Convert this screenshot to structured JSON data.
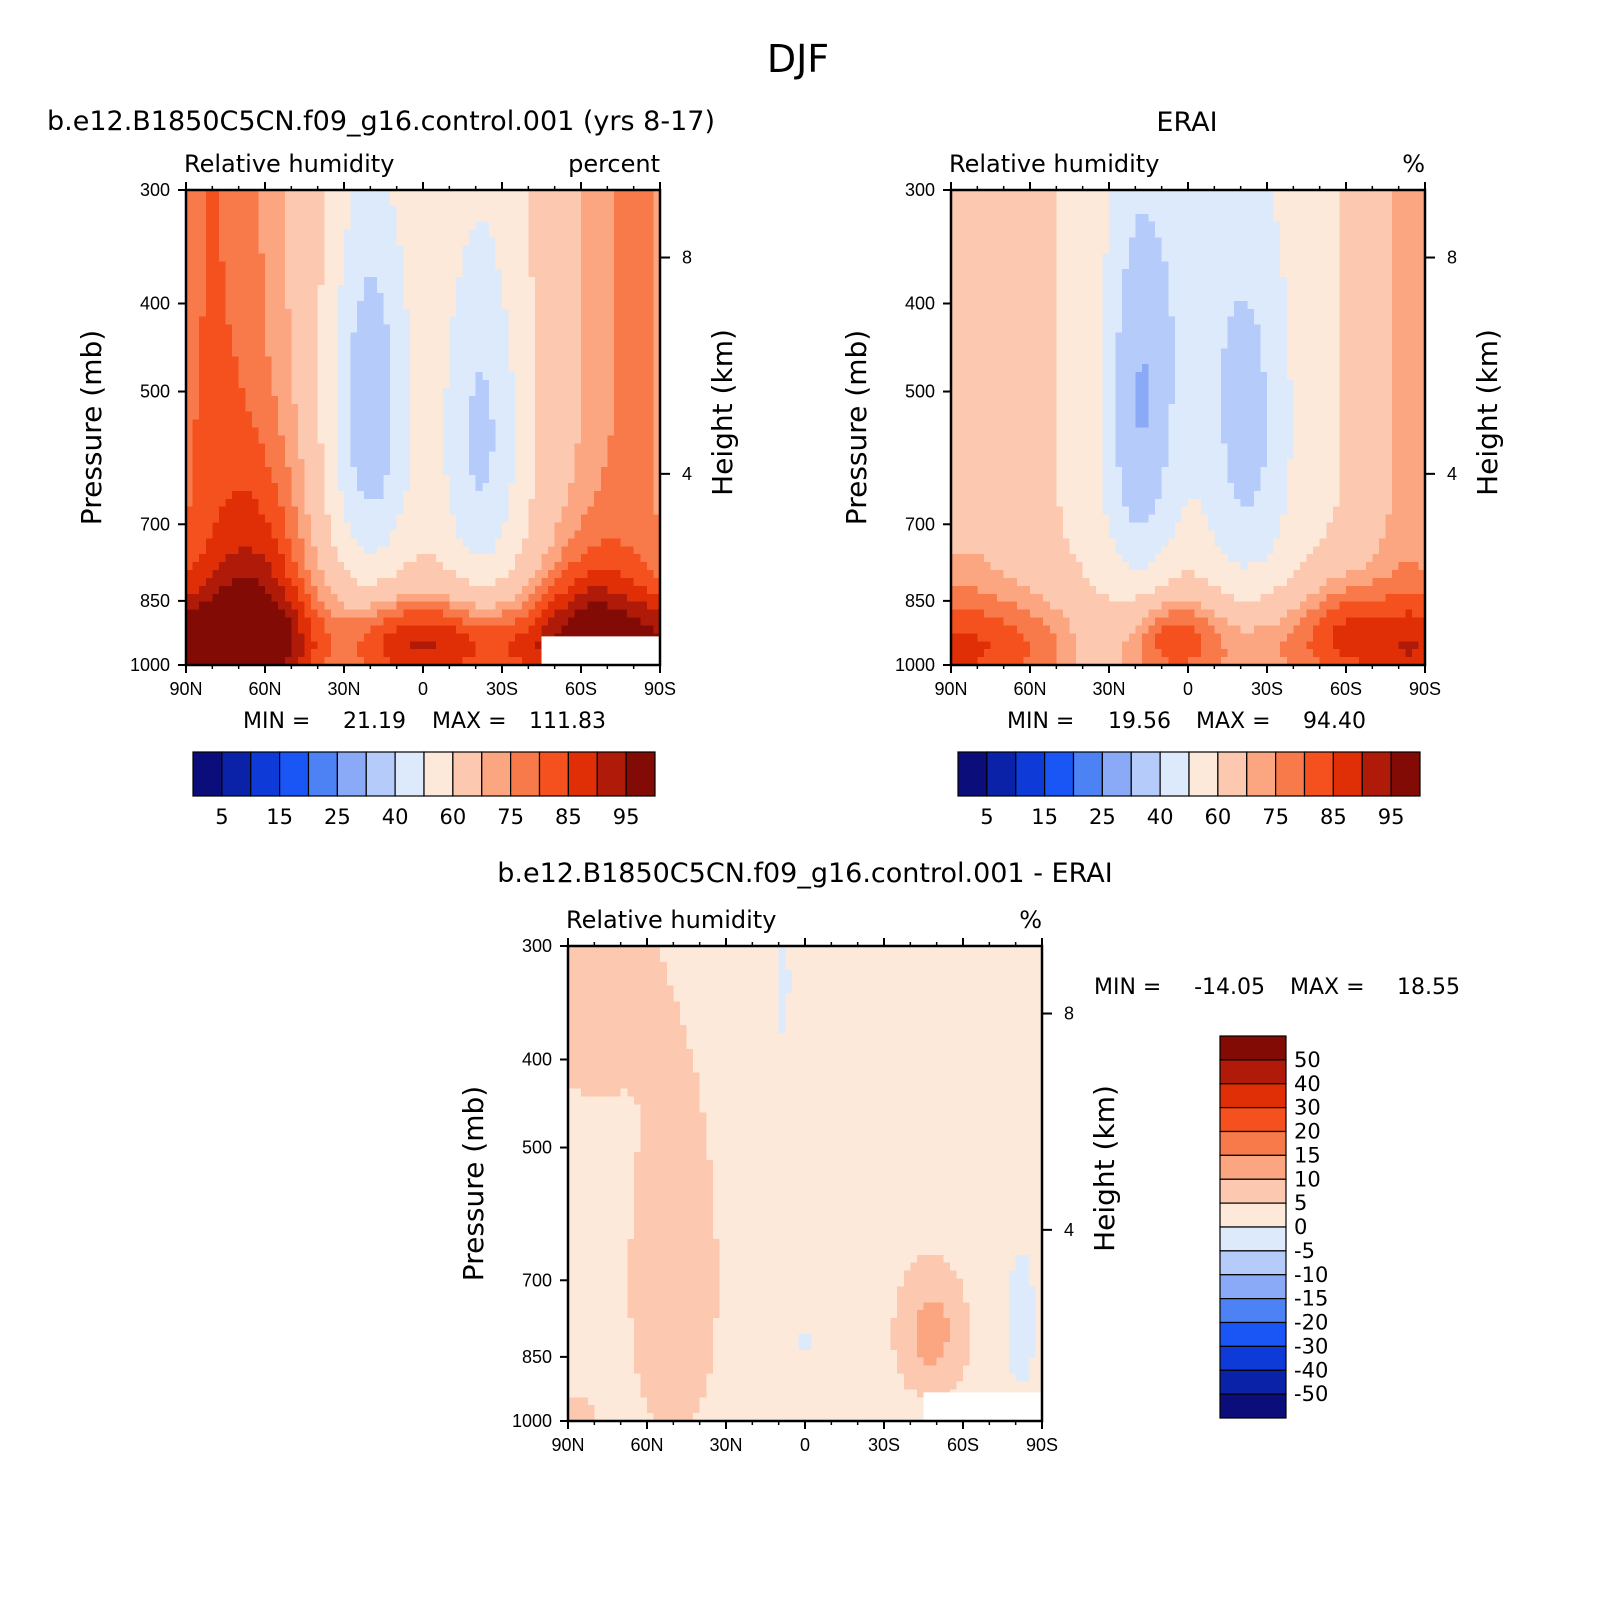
{
  "figure_title": "DJF",
  "chart_data": [
    {
      "type": "heatmap",
      "title": "b.e12.B1850C5CN.f09_g16.control.001 (yrs 8-17)",
      "left_label": "Relative humidity",
      "units": "percent",
      "ylabel": "Pressure (mb)",
      "y2label": "Height (km)",
      "x_ticks": [
        "90N",
        "60N",
        "30N",
        "0",
        "30S",
        "60S",
        "90S"
      ],
      "y_ticks": [
        "300",
        "400",
        "500",
        "700",
        "850",
        "1000"
      ],
      "y2_ticks": [
        "8",
        "4"
      ],
      "min_label": "MIN =",
      "min_value": "21.19",
      "max_label": "MAX =",
      "max_value": "111.83",
      "ylim": [
        1000,
        300
      ],
      "xlim": [
        90,
        -90
      ],
      "colorbar_labels": [
        "5",
        "15",
        "25",
        "40",
        "60",
        "75",
        "85",
        "95"
      ],
      "colors": [
        "#0b0e7a",
        "#0a22a8",
        "#0e3ad8",
        "#1a55f5",
        "#4d82f5",
        "#8aaaf7",
        "#b5cbfa",
        "#dceafb",
        "#fde9d9",
        "#fcc9b0",
        "#fba581",
        "#f8794a",
        "#f5511f",
        "#e02f06",
        "#b01a08",
        "#820c05"
      ],
      "fields": [
        {
          "kind": "ellipse",
          "lat": -20,
          "p": 520,
          "rx": 14,
          "rp": 260,
          "level": 5
        },
        {
          "kind": "ellipse",
          "lat": -21,
          "p": 520,
          "rx": 8,
          "rp": 175,
          "level": 4
        },
        {
          "kind": "ellipse",
          "lat": -20,
          "p": 500,
          "rx": 4,
          "rp": 115,
          "level": 3
        },
        {
          "kind": "ellipse",
          "lat": 25,
          "p": 540,
          "rx": 14,
          "rp": 230,
          "level": 6
        },
        {
          "kind": "ellipse",
          "lat": 80,
          "p": 960,
          "rx": 18,
          "rp": 70,
          "level": 15
        },
        {
          "kind": "ellipse",
          "lat": 0,
          "p": 930,
          "rx": 30,
          "rp": 70,
          "level": 12
        },
        {
          "kind": "ellipse",
          "lat": 60,
          "p": 880,
          "rx": 12,
          "rp": 80,
          "level": 14
        }
      ]
    },
    {
      "type": "heatmap",
      "title": "ERAI",
      "left_label": "Relative humidity",
      "units": "%",
      "ylabel": "Pressure (mb)",
      "y2label": "Height (km)",
      "x_ticks": [
        "90N",
        "60N",
        "30N",
        "0",
        "30S",
        "60S",
        "90S"
      ],
      "y_ticks": [
        "300",
        "400",
        "500",
        "700",
        "850",
        "1000"
      ],
      "y2_ticks": [
        "8",
        "4"
      ],
      "min_label": "MIN =",
      "min_value": "19.56",
      "max_label": "MAX =",
      "max_value": "94.40",
      "ylim": [
        1000,
        300
      ],
      "xlim": [
        90,
        -90
      ],
      "colorbar_labels": [
        "5",
        "15",
        "25",
        "40",
        "60",
        "75",
        "85",
        "95"
      ],
      "colors": [
        "#0b0e7a",
        "#0a22a8",
        "#0e3ad8",
        "#1a55f5",
        "#4d82f5",
        "#8aaaf7",
        "#b5cbfa",
        "#dceafb",
        "#fde9d9",
        "#fcc9b0",
        "#fba581",
        "#f8794a",
        "#f5511f",
        "#e02f06",
        "#b01a08",
        "#820c05"
      ],
      "fields": []
    },
    {
      "type": "heatmap",
      "title": "b.e12.B1850C5CN.f09_g16.control.001 - ERAI",
      "left_label": "Relative humidity",
      "units": "%",
      "ylabel": "Pressure (mb)",
      "y2label": "Height (km)",
      "x_ticks": [
        "90N",
        "60N",
        "30N",
        "0",
        "30S",
        "60S",
        "90S"
      ],
      "y_ticks": [
        "300",
        "400",
        "500",
        "700",
        "850",
        "1000"
      ],
      "y2_ticks": [
        "8",
        "4"
      ],
      "min_label": "MIN =",
      "min_value": "-14.05",
      "max_label": "MAX =",
      "max_value": "18.55",
      "ylim": [
        1000,
        300
      ],
      "xlim": [
        90,
        -90
      ],
      "colorbar_labels": [
        "50",
        "40",
        "30",
        "20",
        "15",
        "10",
        "5",
        "0",
        "-5",
        "-10",
        "-15",
        "-20",
        "-30",
        "-40",
        "-50"
      ],
      "colors": [
        "#820c05",
        "#b01a08",
        "#e02f06",
        "#f5511f",
        "#f8794a",
        "#fba581",
        "#fcc9b0",
        "#fde9d9",
        "#dceafb",
        "#b5cbfa",
        "#8aaaf7",
        "#4d82f5",
        "#1a55f5",
        "#0e3ad8",
        "#0a22a8",
        "#0b0e7a"
      ]
    }
  ]
}
